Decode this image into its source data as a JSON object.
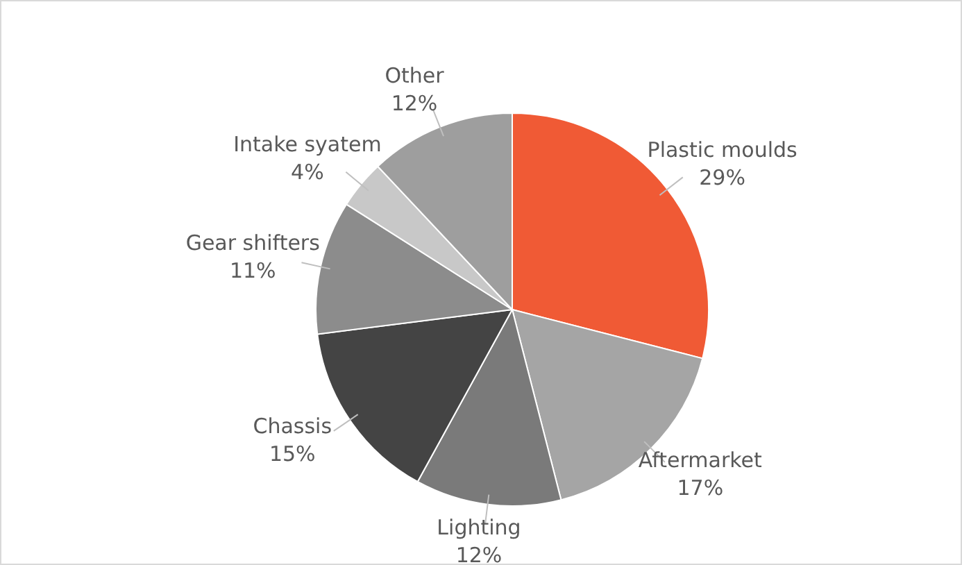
{
  "chart_data": {
    "type": "pie",
    "categories": [
      "Plastic moulds",
      "Aftermarket",
      "Lighting",
      "Chassis",
      "Gear shifters",
      "Intake syatem",
      "Other"
    ],
    "values": [
      29,
      17,
      12,
      15,
      11,
      4,
      12
    ],
    "colors": [
      "#f05a35",
      "#a5a5a5",
      "#7a7a7a",
      "#444444",
      "#8c8c8c",
      "#c8c8c8",
      "#9e9e9e"
    ],
    "value_labels": [
      "29%",
      "17%",
      "12%",
      "15%",
      "11%",
      "4%",
      "12%"
    ],
    "legend": false
  }
}
